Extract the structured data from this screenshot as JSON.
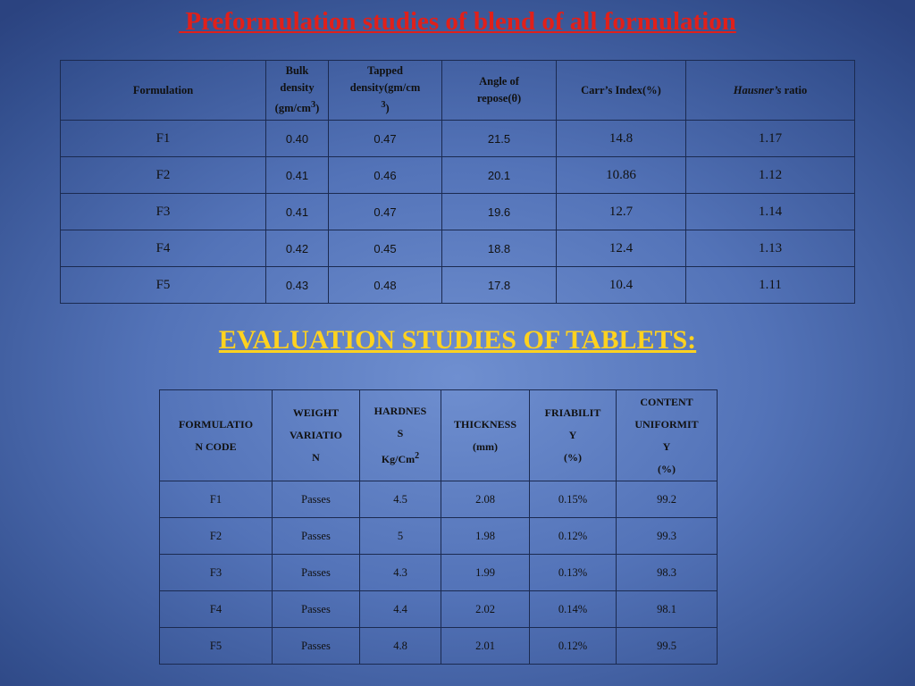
{
  "title1": " Preformulation studies of blend of all formulation",
  "table1": {
    "headers": {
      "formulation": "Formulation",
      "bulk_a": "Bulk",
      "bulk_b": "density",
      "bulk_c": "(gm/cm",
      "bulk_sup": "3",
      "bulk_d": ")",
      "tapped_a": "Tapped",
      "tapped_b": "density(gm/cm",
      "tapped_sup": "3",
      "tapped_d": ")",
      "angle_a": "Angle of",
      "angle_b": "repose(θ)",
      "carr": "Carr’s Index(%)",
      "hausner_name": "Hausner’s",
      "hausner_rest": " ratio"
    },
    "rows": [
      {
        "formulation": "F1",
        "bulk": "0.40",
        "tapped": "0.47",
        "angle": "21.5",
        "carr": "14.8",
        "hausner": "1.17"
      },
      {
        "formulation": "F2",
        "bulk": "0.41",
        "tapped": "0.46",
        "angle": "20.1",
        "carr": "10.86",
        "hausner": "1.12"
      },
      {
        "formulation": "F3",
        "bulk": "0.41",
        "tapped": "0.47",
        "angle": "19.6",
        "carr": "12.7",
        "hausner": "1.14"
      },
      {
        "formulation": "F4",
        "bulk": "0.42",
        "tapped": "0.45",
        "angle": "18.8",
        "carr": "12.4",
        "hausner": "1.13"
      },
      {
        "formulation": "F5",
        "bulk": "0.43",
        "tapped": "0.48",
        "angle": "17.8",
        "carr": "10.4",
        "hausner": "1.11"
      }
    ]
  },
  "title2": "EVALUATION STUDIES OF TABLETS:",
  "table2": {
    "headers": {
      "code_a": "FORMULATIO",
      "code_b": "N CODE",
      "weight_a": "WEIGHT",
      "weight_b": "VARIATIO",
      "weight_c": "N",
      "hard_a": "HARDNES",
      "hard_b": "S",
      "hard_c": "Kg/Cm",
      "hard_sup": "2",
      "thick_a": "THICKNESS",
      "thick_b": "(mm)",
      "fri_a": "FRIABILIT",
      "fri_b": "Y",
      "fri_c": "(%)",
      "cu_a": "CONTENT",
      "cu_b": "UNIFORMIT",
      "cu_c": "Y",
      "cu_d": "(%)"
    },
    "rows": [
      {
        "code": "F1",
        "weight": "Passes",
        "hardness": "4.5",
        "thickness": "2.08",
        "friability": "0.15%",
        "content": "99.2"
      },
      {
        "code": "F2",
        "weight": "Passes",
        "hardness": "5",
        "thickness": "1.98",
        "friability": "0.12%",
        "content": "99.3"
      },
      {
        "code": "F3",
        "weight": "Passes",
        "hardness": "4.3",
        "thickness": "1.99",
        "friability": "0.13%",
        "content": "98.3"
      },
      {
        "code": "F4",
        "weight": "Passes",
        "hardness": "4.4",
        "thickness": "2.02",
        "friability": "0.14%",
        "content": "98.1"
      },
      {
        "code": "F5",
        "weight": "Passes",
        "hardness": "4.8",
        "thickness": "2.01",
        "friability": "0.12%",
        "content": "99.5"
      }
    ]
  }
}
